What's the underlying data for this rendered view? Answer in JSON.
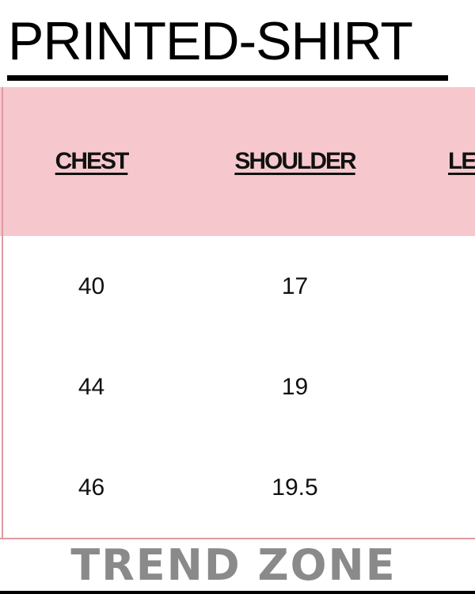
{
  "title": "PRINTED-SHIRT",
  "table": {
    "headers": [
      "CHEST",
      "SHOULDER",
      "LE"
    ],
    "rows": [
      [
        "40",
        "17",
        ""
      ],
      [
        "44",
        "19",
        ""
      ],
      [
        "46",
        "19.5",
        ""
      ]
    ]
  },
  "brand": "TREND ZONE",
  "colors": {
    "header_bg": "#f6c8cd",
    "border": "#df9aa3",
    "brand_text": "#8a8a8a"
  }
}
